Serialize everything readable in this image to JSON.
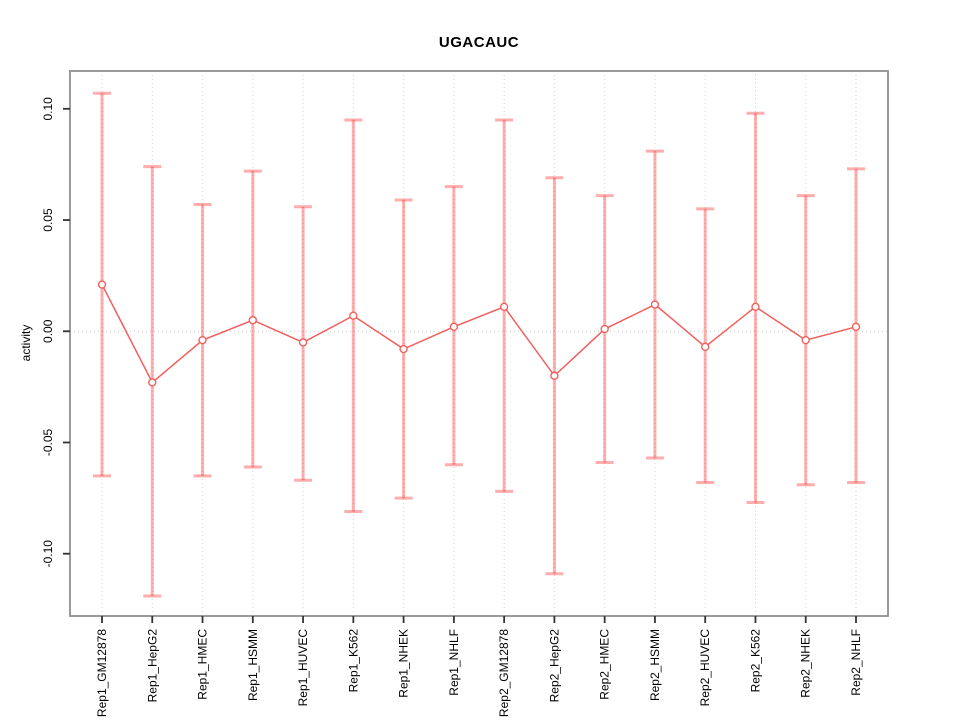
{
  "chart_data": {
    "type": "line",
    "title": "UGACAUC",
    "xlabel": "",
    "ylabel": "activity",
    "categories": [
      "Rep1_GM12878",
      "Rep1_HepG2",
      "Rep1_HMEC",
      "Rep1_HSMM",
      "Rep1_HUVEC",
      "Rep1_K562",
      "Rep1_NHEK",
      "Rep1_NHLF",
      "Rep2_GM12878",
      "Rep2_HepG2",
      "Rep2_HMEC",
      "Rep2_HSMM",
      "Rep2_HUVEC",
      "Rep2_K562",
      "Rep2_NHEK",
      "Rep2_NHLF"
    ],
    "series": [
      {
        "name": "activity",
        "values": [
          0.021,
          -0.023,
          -0.004,
          0.005,
          -0.005,
          0.007,
          -0.008,
          0.002,
          0.011,
          -0.02,
          0.001,
          0.012,
          -0.007,
          0.011,
          -0.004,
          0.002
        ],
        "upper": [
          0.107,
          0.074,
          0.057,
          0.072,
          0.056,
          0.095,
          0.059,
          0.065,
          0.095,
          0.069,
          0.061,
          0.081,
          0.055,
          0.098,
          0.061,
          0.073
        ],
        "lower": [
          -0.065,
          -0.119,
          -0.065,
          -0.061,
          -0.067,
          -0.081,
          -0.075,
          -0.06,
          -0.072,
          -0.109,
          -0.059,
          -0.057,
          -0.068,
          -0.077,
          -0.069,
          -0.068
        ]
      }
    ],
    "yticks": [
      0.1,
      0.05,
      0.0,
      -0.05,
      -0.1
    ],
    "ytick_labels": [
      "0.10",
      "0.05",
      "0.00",
      "-0.05",
      "-0.10"
    ],
    "ylim": [
      -0.128,
      0.117
    ],
    "grid": {
      "vertical_dotted": true,
      "zero_line_dotted": true
    },
    "legend": "none",
    "colors": {
      "error_bar": "rgba(255,60,60,0.42)",
      "line": "#f15f5c",
      "point_stroke": "#f15f5c",
      "point_fill": "#ffffff",
      "gridline": "#d4d4d4",
      "zero_line": "#c8c8c8",
      "plot_border": "#909090",
      "tick": "#333333",
      "text": "#000000"
    }
  }
}
